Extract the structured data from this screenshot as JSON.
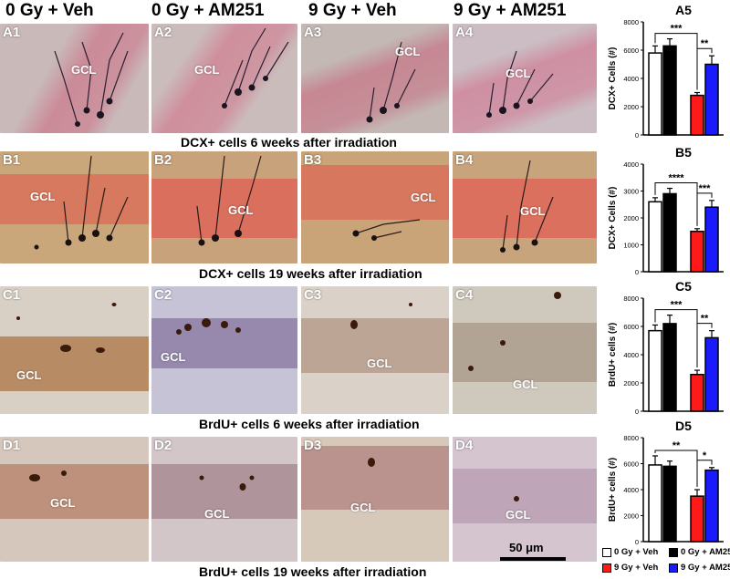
{
  "columns": [
    "0 Gy + Veh",
    "0 Gy + AM251",
    "9 Gy + Veh",
    "9 Gy + AM251"
  ],
  "rows": [
    {
      "panels": [
        "A1",
        "A2",
        "A3",
        "A4"
      ],
      "gcl": "GCL",
      "caption": "DCX+ cells 6 weeks after irradiation"
    },
    {
      "panels": [
        "B1",
        "B2",
        "B3",
        "B4"
      ],
      "gcl": "GCL",
      "caption": "DCX+ cells 19 weeks after irradiation"
    },
    {
      "panels": [
        "C1",
        "C2",
        "C3",
        "C4"
      ],
      "gcl": "GCL",
      "caption": "BrdU+ cells 6 weeks after irradiation"
    },
    {
      "panels": [
        "D1",
        "D2",
        "D3",
        "D4"
      ],
      "gcl": "GCL",
      "caption": "BrdU+ cells 19 weeks after irradiation"
    }
  ],
  "scale_bar": "50 μm",
  "colors": {
    "veh0": "#ffffff",
    "am0": "#000000",
    "veh9": "#ff1a1a",
    "am9": "#1a1aff"
  },
  "legend": [
    {
      "label": "0 Gy + Veh",
      "color": "#ffffff"
    },
    {
      "label": "0 Gy + AM251",
      "color": "#000000"
    },
    {
      "label": "9 Gy + Veh",
      "color": "#ff1a1a"
    },
    {
      "label": "9 Gy + AM251",
      "color": "#1a1aff"
    }
  ],
  "chart_data": [
    {
      "type": "bar",
      "title": "A5",
      "ylabel": "DCX+ Cells (#)",
      "ylim": [
        0,
        8000
      ],
      "yticks": [
        0,
        2000,
        4000,
        6000,
        8000
      ],
      "categories": [
        "0 Gy + Veh",
        "0 Gy + AM251",
        "9 Gy + Veh",
        "9 Gy + AM251"
      ],
      "values": [
        5800,
        6300,
        2800,
        5000
      ],
      "errors": [
        500,
        500,
        200,
        600
      ],
      "annotations": [
        "***",
        "**"
      ]
    },
    {
      "type": "bar",
      "title": "B5",
      "ylabel": "DCX+ Cells (#)",
      "ylim": [
        0,
        4000
      ],
      "yticks": [
        0,
        1000,
        2000,
        3000,
        4000
      ],
      "categories": [
        "0 Gy + Veh",
        "0 Gy + AM251",
        "9 Gy + Veh",
        "9 Gy + AM251"
      ],
      "values": [
        2600,
        2900,
        1500,
        2400
      ],
      "errors": [
        150,
        200,
        100,
        250
      ],
      "annotations": [
        "****",
        "***"
      ]
    },
    {
      "type": "bar",
      "title": "C5",
      "ylabel": "BrdU+ cells (#)",
      "ylim": [
        0,
        8000
      ],
      "yticks": [
        0,
        2000,
        4000,
        6000,
        8000
      ],
      "categories": [
        "0 Gy + Veh",
        "0 Gy + AM251",
        "9 Gy + Veh",
        "9 Gy + AM251"
      ],
      "values": [
        5700,
        6200,
        2600,
        5200
      ],
      "errors": [
        400,
        600,
        300,
        500
      ],
      "annotations": [
        "***",
        "**"
      ]
    },
    {
      "type": "bar",
      "title": "D5",
      "ylabel": "BrdU+ cells (#)",
      "ylim": [
        0,
        8000
      ],
      "yticks": [
        0,
        2000,
        4000,
        6000,
        8000
      ],
      "categories": [
        "0 Gy + Veh",
        "0 Gy + AM251",
        "9 Gy + Veh",
        "9 Gy + AM251"
      ],
      "values": [
        5900,
        5800,
        3500,
        5500
      ],
      "errors": [
        700,
        400,
        500,
        200
      ],
      "annotations": [
        "**",
        "*"
      ]
    }
  ]
}
